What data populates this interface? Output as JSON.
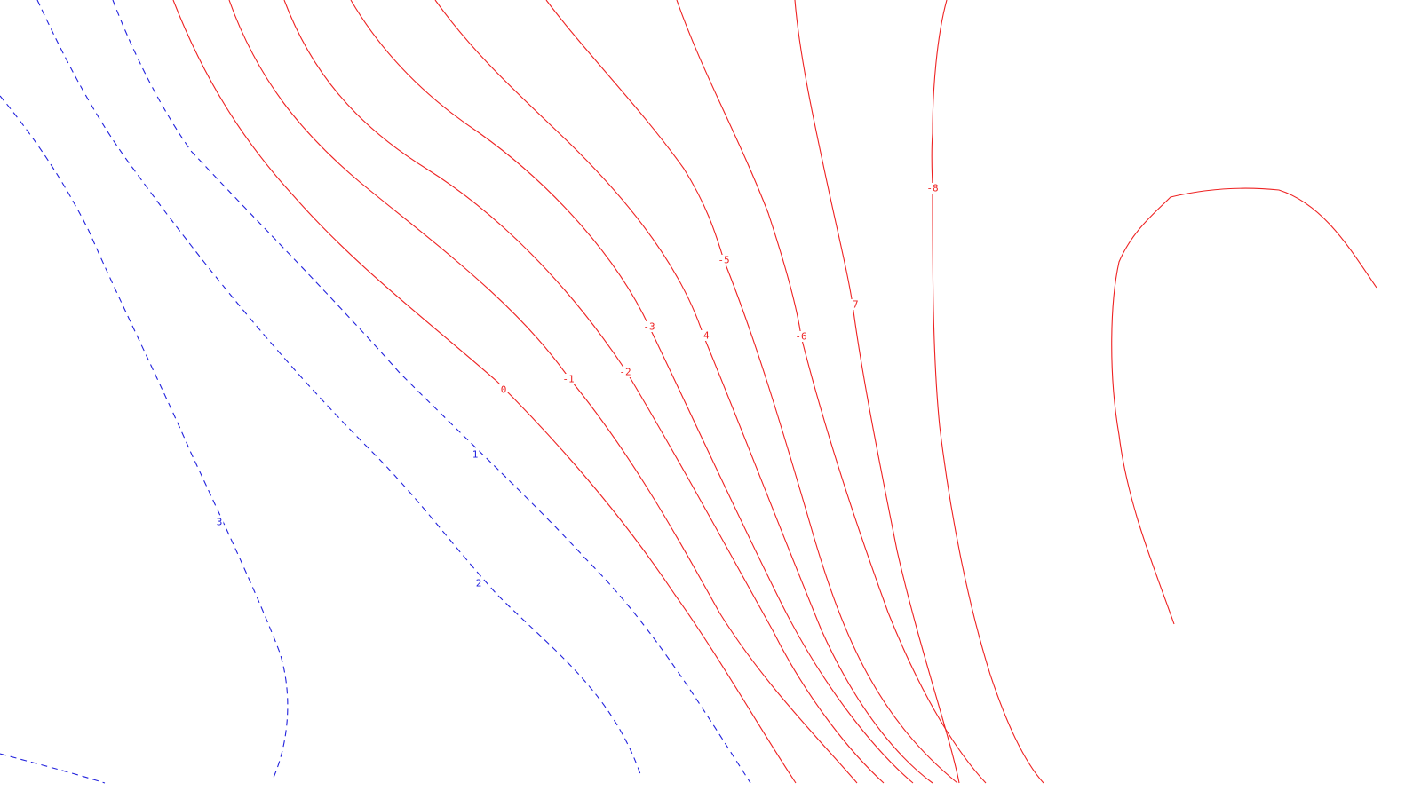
{
  "chart_data": {
    "type": "contour",
    "title": "",
    "xlabel": "",
    "ylabel": "",
    "grid": false,
    "legend": "none",
    "style": {
      "positive_color": "#2222dd",
      "positive_dash": "dashed",
      "negative_color": "#ee2222",
      "negative_dash": "solid"
    },
    "levels": [
      {
        "value": 3,
        "label": "3",
        "sign": "positive"
      },
      {
        "value": 2,
        "label": "2",
        "sign": "positive"
      },
      {
        "value": 1,
        "label": "1",
        "sign": "positive"
      },
      {
        "value": 0,
        "label": "0",
        "sign": "zero"
      },
      {
        "value": -1,
        "label": "-1",
        "sign": "negative"
      },
      {
        "value": -2,
        "label": "-2",
        "sign": "negative"
      },
      {
        "value": -3,
        "label": "-3",
        "sign": "negative"
      },
      {
        "value": -4,
        "label": "-4",
        "sign": "negative"
      },
      {
        "value": -5,
        "label": "-5",
        "sign": "negative"
      },
      {
        "value": -6,
        "label": "-6",
        "sign": "negative"
      },
      {
        "value": -7,
        "label": "-7",
        "sign": "negative"
      },
      {
        "value": -8,
        "label": "-8",
        "sign": "negative"
      },
      {
        "value": -9,
        "label": "",
        "sign": "negative"
      }
    ]
  }
}
